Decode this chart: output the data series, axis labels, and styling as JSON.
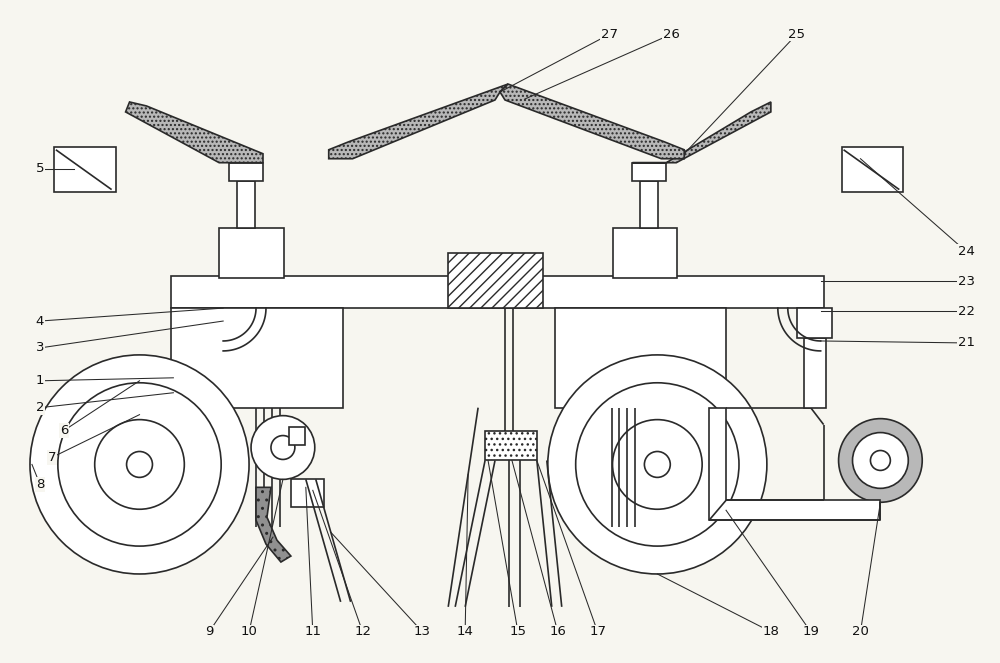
{
  "bg_color": "#f7f6f0",
  "lc": "#2a2a2a",
  "lw": 1.2,
  "lw_thin": 0.75,
  "gray_dot": "#b8b8b8",
  "xlim": [
    0,
    10
  ],
  "ylim": [
    0,
    6.63
  ],
  "labels_bottom": [
    [
      "9",
      2.08,
      0.3
    ],
    [
      "10",
      2.48,
      0.3
    ],
    [
      "11",
      3.12,
      0.3
    ],
    [
      "12",
      3.62,
      0.3
    ],
    [
      "13",
      4.22,
      0.3
    ],
    [
      "14",
      4.65,
      0.3
    ],
    [
      "15",
      5.18,
      0.3
    ],
    [
      "16",
      5.58,
      0.3
    ],
    [
      "17",
      5.98,
      0.3
    ],
    [
      "18",
      7.72,
      0.3
    ],
    [
      "19",
      8.12,
      0.3
    ],
    [
      "20",
      8.62,
      0.3
    ]
  ],
  "labels_left": [
    [
      "1",
      0.38,
      2.82
    ],
    [
      "2",
      0.38,
      2.55
    ],
    [
      "3",
      0.38,
      3.15
    ],
    [
      "4",
      0.38,
      3.42
    ],
    [
      "5",
      0.38,
      4.95
    ],
    [
      "6",
      0.62,
      2.32
    ],
    [
      "7",
      0.5,
      2.05
    ],
    [
      "8",
      0.38,
      1.78
    ]
  ],
  "labels_right": [
    [
      "21",
      9.68,
      3.2
    ],
    [
      "22",
      9.68,
      3.52
    ],
    [
      "23",
      9.68,
      3.82
    ],
    [
      "24",
      9.68,
      4.12
    ]
  ],
  "labels_top": [
    [
      "25",
      7.98,
      6.3
    ],
    [
      "26",
      6.72,
      6.3
    ],
    [
      "27",
      6.1,
      6.3
    ]
  ]
}
